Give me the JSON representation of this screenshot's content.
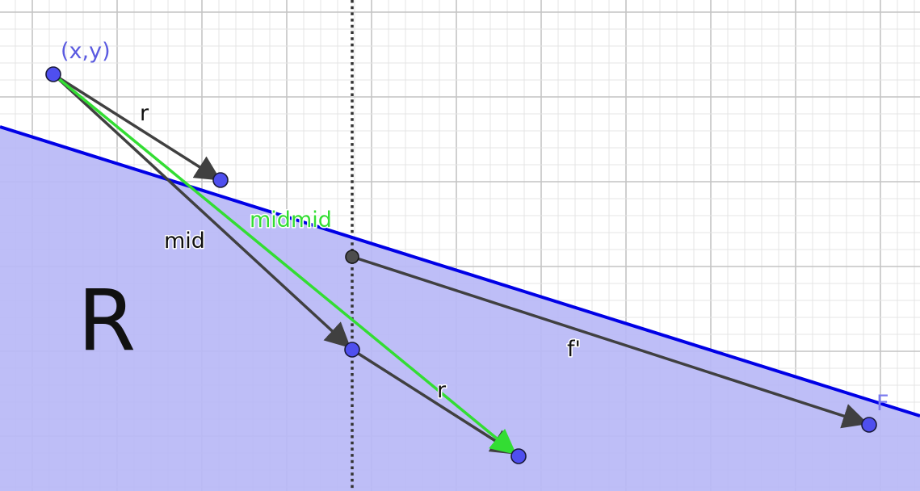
{
  "colors": {
    "region_fill": "#b9b9f6",
    "boundary": "#0000e6",
    "vector": "#404040",
    "midmid": "#33dd33",
    "point_fill": "#4f4fef",
    "point_stroke": "#1a1a3a",
    "label_point": "#5a5ae0",
    "label_F": "#7b7bef",
    "label_black": "#111111",
    "grid_minor": "#e4e4e4",
    "grid_major": "#c4c4c4"
  },
  "labels": {
    "point_xy": "(x,y)",
    "vector_r_top": "r",
    "vector_mid": "mid",
    "vector_midmid": "midmid",
    "region": "R",
    "vector_r_bottom": "r",
    "tangent": "f'",
    "point_F": "F"
  }
}
